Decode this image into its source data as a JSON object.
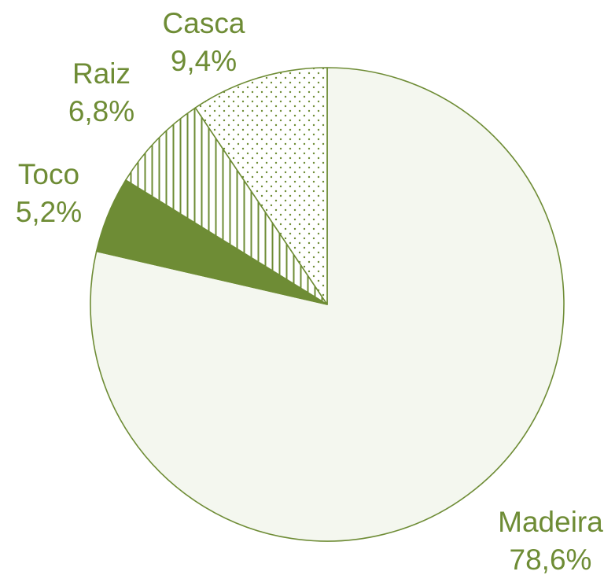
{
  "chart_data": {
    "type": "pie",
    "title": "",
    "unit": "%",
    "slices": [
      {
        "name": "Madeira",
        "value": 78.6,
        "label": "78,6%",
        "fill": "light",
        "pattern": "none"
      },
      {
        "name": "Toco",
        "value": 5.2,
        "label": "5,2%",
        "fill": "solid",
        "pattern": "none"
      },
      {
        "name": "Raiz",
        "value": 6.8,
        "label": "6,8%",
        "fill": "pattern",
        "pattern": "vertical-lines"
      },
      {
        "name": "Casca",
        "value": 9.4,
        "label": "9,4%",
        "fill": "pattern",
        "pattern": "dots"
      }
    ],
    "start_angle": "12 o'clock",
    "direction": "clockwise",
    "legend": "none (labels placed next to slices)",
    "colors": {
      "primary": "#6e8c35",
      "light_fill": "#f4f7ef",
      "label_text": "#6e8c35"
    }
  }
}
